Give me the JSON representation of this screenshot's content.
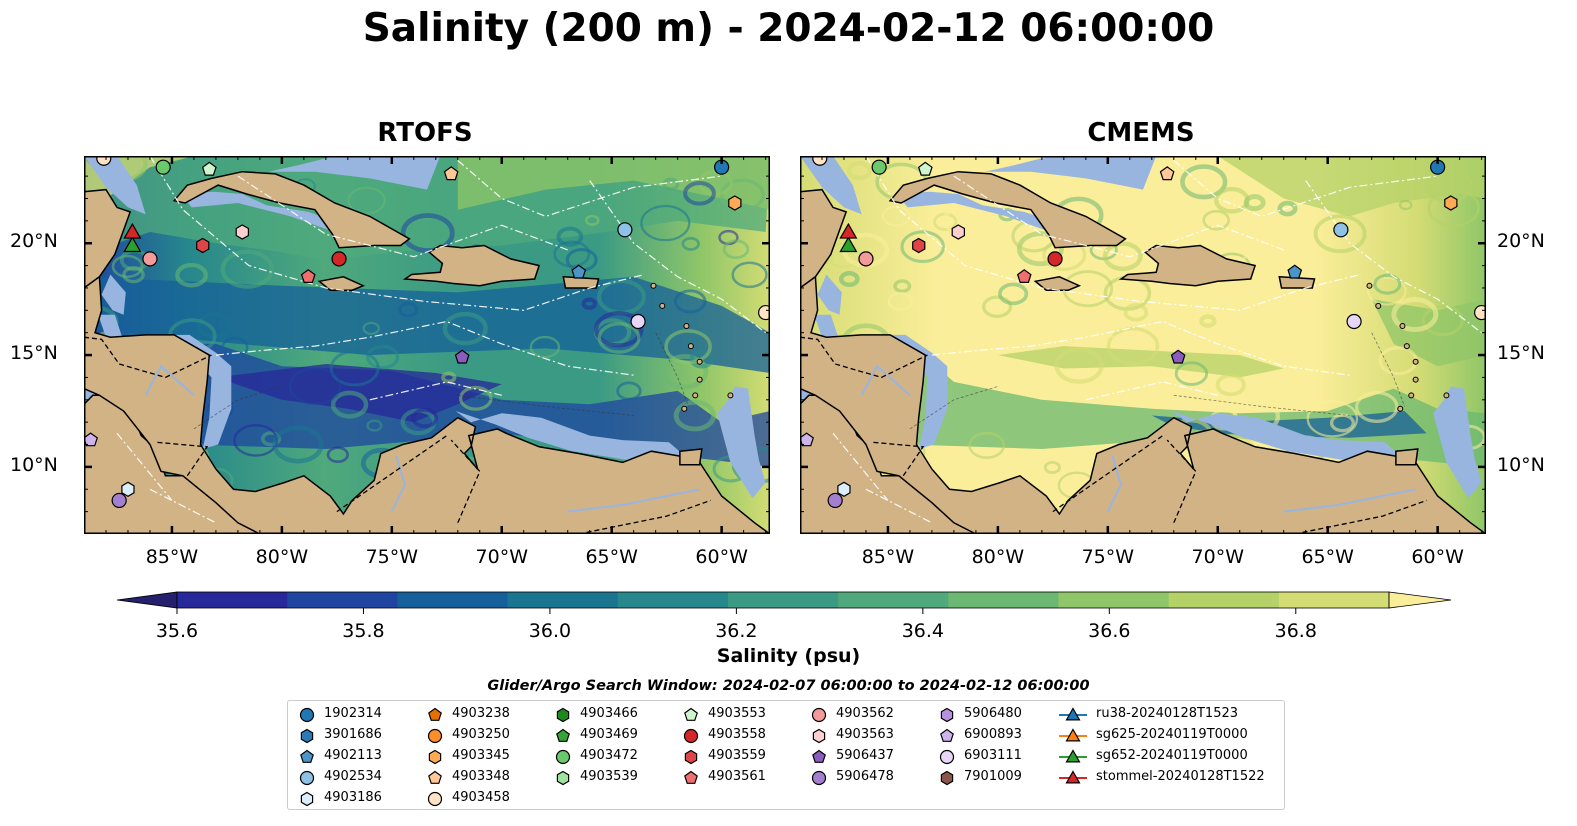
{
  "title": "Salinity (200 m) - 2024-02-12 06:00:00",
  "panels": [
    {
      "title": "RTOFS"
    },
    {
      "title": "CMEMS"
    }
  ],
  "axes": {
    "lon_labels": [
      "85°W",
      "80°W",
      "75°W",
      "70°W",
      "65°W",
      "60°W"
    ],
    "lat_labels": [
      "20°N",
      "15°N",
      "10°N"
    ]
  },
  "colorbar": {
    "label": "Salinity (psu)",
    "ticks": [
      "35.6",
      "35.8",
      "36.0",
      "36.2",
      "36.4",
      "36.6",
      "36.8"
    ],
    "min": 35.55,
    "max": 36.9,
    "colors": [
      "#24206e",
      "#27289a",
      "#1f45a0",
      "#15609a",
      "#1a7590",
      "#26878c",
      "#3a9a84",
      "#4fa97c",
      "#6ab872",
      "#8fc668",
      "#b4d268",
      "#d4dc74",
      "#fbee9a"
    ]
  },
  "map_colors": {
    "land": "#d1b386",
    "shallow": "#98b5df",
    "border": "#000000"
  },
  "search_window": "Glider/Argo Search Window: 2024-02-07 06:00:00 to 2024-02-12 06:00:00",
  "legend": [
    [
      {
        "label": "1902314",
        "marker": "circle",
        "color": "#1f77b4"
      },
      {
        "label": "3901686",
        "marker": "hexagon",
        "color": "#2a7ab8"
      },
      {
        "label": "4902113",
        "marker": "pentagon",
        "color": "#4c95c9"
      },
      {
        "label": "4902534",
        "marker": "circle",
        "color": "#8ec1e6"
      },
      {
        "label": "4903186",
        "marker": "hexagon",
        "color": "#dceefb"
      }
    ],
    [
      {
        "label": "4903238",
        "marker": "pentagon",
        "color": "#e56f00"
      },
      {
        "label": "4903250",
        "marker": "circle",
        "color": "#ff8c2a"
      },
      {
        "label": "4903345",
        "marker": "hexagon",
        "color": "#ffaa55"
      },
      {
        "label": "4903348",
        "marker": "pentagon",
        "color": "#ffc896"
      },
      {
        "label": "4903458",
        "marker": "circle",
        "color": "#ffe3c4"
      }
    ],
    [
      {
        "label": "4903466",
        "marker": "hexagon",
        "color": "#1e8a1e"
      },
      {
        "label": "4903469",
        "marker": "pentagon",
        "color": "#35a335"
      },
      {
        "label": "4903472",
        "marker": "circle",
        "color": "#6cc86c"
      },
      {
        "label": "4903539",
        "marker": "hexagon",
        "color": "#9ee49e"
      }
    ],
    [
      {
        "label": "4903553",
        "marker": "pentagon",
        "color": "#cff5cf"
      },
      {
        "label": "4903558",
        "marker": "circle",
        "color": "#d62728"
      },
      {
        "label": "4903559",
        "marker": "hexagon",
        "color": "#e04448"
      },
      {
        "label": "4903561",
        "marker": "pentagon",
        "color": "#ef6f70"
      }
    ],
    [
      {
        "label": "4903562",
        "marker": "circle",
        "color": "#f59a9a"
      },
      {
        "label": "4903563",
        "marker": "hexagon",
        "color": "#fcd0d0"
      },
      {
        "label": "5906437",
        "marker": "pentagon",
        "color": "#8a5cc0"
      },
      {
        "label": "5906478",
        "marker": "circle",
        "color": "#a47fd0"
      }
    ],
    [
      {
        "label": "5906480",
        "marker": "hexagon",
        "color": "#b890de"
      },
      {
        "label": "6900893",
        "marker": "pentagon",
        "color": "#cfb4ec"
      },
      {
        "label": "6903111",
        "marker": "circle",
        "color": "#e8d6f7"
      },
      {
        "label": "7901009",
        "marker": "hexagon",
        "color": "#8c564b"
      }
    ],
    [
      {
        "label": "ru38-20240128T1523",
        "marker": "triangle",
        "color": "#1f77b4"
      },
      {
        "label": "sg625-20240119T0000",
        "marker": "triangle",
        "color": "#ff7f0e"
      },
      {
        "label": "sg652-20240119T0000",
        "marker": "triangle",
        "color": "#2ca02c"
      },
      {
        "label": "stommel-20240128T1522",
        "marker": "triangle",
        "color": "#d62728"
      }
    ]
  ],
  "float_markers": [
    {
      "label": "4903458",
      "lon": -88.1,
      "lat": 23.8
    },
    {
      "label": "4903472",
      "lon": -85.4,
      "lat": 23.4
    },
    {
      "label": "4903553",
      "lon": -83.3,
      "lat": 23.3
    },
    {
      "label": "4903348",
      "lon": -72.3,
      "lat": 23.1
    },
    {
      "label": "1902314",
      "lon": -60.0,
      "lat": 23.4
    },
    {
      "label": "4903345",
      "lon": -59.4,
      "lat": 21.8
    },
    {
      "label": "4902534",
      "lon": -64.4,
      "lat": 20.6
    },
    {
      "label": "4903563",
      "lon": -81.8,
      "lat": 20.5
    },
    {
      "label": "4903559",
      "lon": -83.6,
      "lat": 19.9
    },
    {
      "label": "4903562",
      "lon": -86.0,
      "lat": 19.3
    },
    {
      "label": "4903558",
      "lon": -77.4,
      "lat": 19.3
    },
    {
      "label": "4903561",
      "lon": -78.8,
      "lat": 18.5
    },
    {
      "label": "4902113",
      "lon": -66.5,
      "lat": 18.7
    },
    {
      "label": "4903458",
      "lon": -58.0,
      "lat": 16.9
    },
    {
      "label": "6903111",
      "lon": -63.8,
      "lat": 16.5
    },
    {
      "label": "5906437",
      "lon": -71.8,
      "lat": 14.9
    },
    {
      "label": "6900893",
      "lon": -88.7,
      "lat": 11.2
    },
    {
      "label": "4903186",
      "lon": -87.0,
      "lat": 9.0
    },
    {
      "label": "5906478",
      "lon": -87.4,
      "lat": 8.5
    }
  ],
  "glider_markers": [
    {
      "label": "sg652-20240119T0000",
      "lon": -86.8,
      "lat": 19.9
    },
    {
      "label": "stommel-20240128T1522",
      "lon": -86.8,
      "lat": 20.5
    }
  ]
}
